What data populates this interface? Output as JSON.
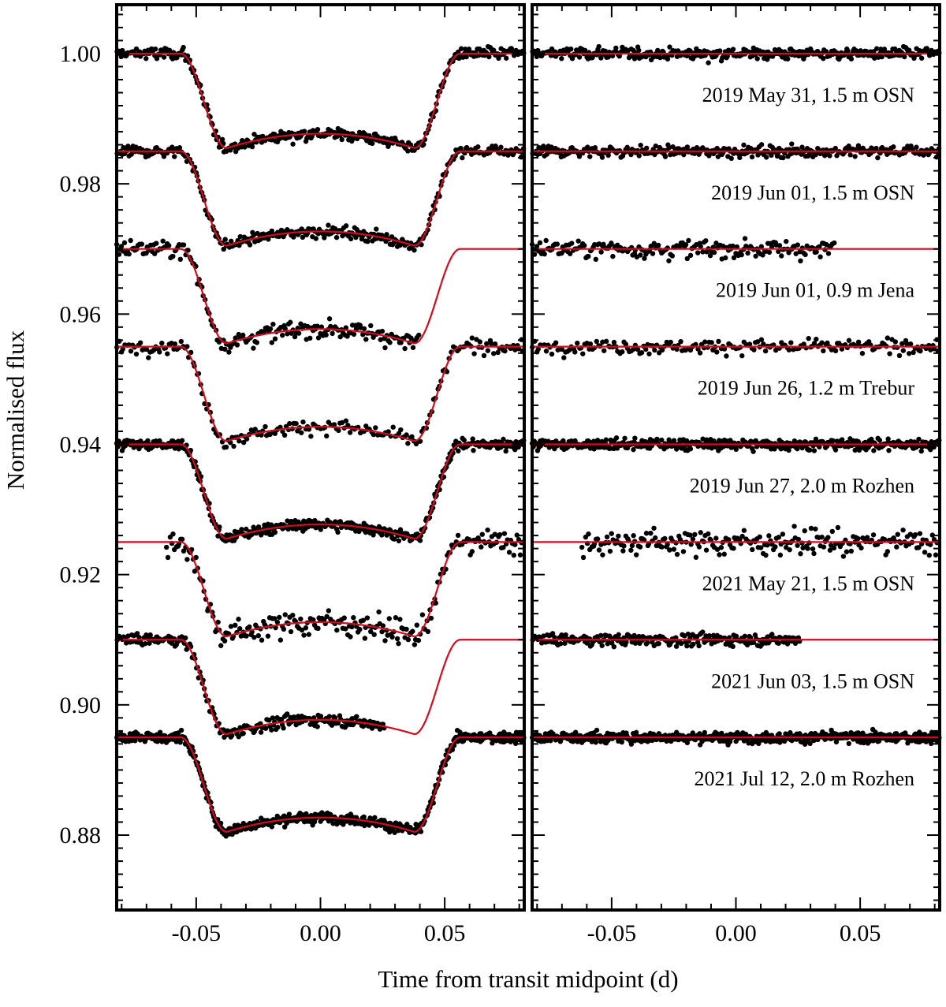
{
  "chart_data": {
    "type": "scatter",
    "xlabel": "Time from transit midpoint (d)",
    "ylabel": "Normalised flux",
    "xlim": [
      -0.082,
      0.082
    ],
    "ylim": [
      0.8685,
      1.0075
    ],
    "yticks_labeled": [
      "1.00",
      "0.98",
      "0.96",
      "0.94",
      "0.92",
      "0.90",
      "0.88"
    ],
    "xticks_labeled": [
      "-0.05",
      "0.00",
      "0.05"
    ],
    "grid": false,
    "colors": {
      "points": "#000000",
      "model": "#d40a1e"
    },
    "transit_model": {
      "t14": 0.1125,
      "t12": 0.0185,
      "depth": 0.0145,
      "limb_curvature": 0.0022
    },
    "panels": [
      {
        "name": "light-curves",
        "content": "transit data with model"
      },
      {
        "name": "residuals",
        "content": "residuals with zero line"
      }
    ],
    "series": [
      {
        "name": "2019 May 31, 1.5 m OSN",
        "offset": 1.0,
        "x_range": [
          -0.082,
          0.082
        ],
        "scatter": 0.00065,
        "n_points": 380
      },
      {
        "name": "2019 Jun 01, 1.5 m OSN",
        "offset": 0.985,
        "x_range": [
          -0.082,
          0.082
        ],
        "scatter": 0.0006,
        "n_points": 340
      },
      {
        "name": "2019 Jun 01, 0.9 m Jena",
        "offset": 0.97,
        "x_range": [
          -0.082,
          0.04
        ],
        "scatter": 0.001,
        "n_points": 200
      },
      {
        "name": "2019 Jun 26, 1.2 m Trebur",
        "offset": 0.955,
        "x_range": [
          -0.082,
          0.082
        ],
        "scatter": 0.00075,
        "n_points": 210
      },
      {
        "name": "2019 Jun 27, 2.0 m Rozhen",
        "offset": 0.94,
        "x_range": [
          -0.082,
          0.082
        ],
        "scatter": 0.0006,
        "n_points": 480
      },
      {
        "name": "2021 May 21, 1.5 m OSN",
        "offset": 0.925,
        "x_range": [
          -0.062,
          0.082
        ],
        "scatter": 0.0013,
        "n_points": 230
      },
      {
        "name": "2021 Jun 03, 1.5 m OSN",
        "offset": 0.91,
        "x_range": [
          -0.082,
          0.026
        ],
        "scatter": 0.00065,
        "n_points": 240
      },
      {
        "name": "2021 Jul 12, 2.0 m Rozhen",
        "offset": 0.895,
        "x_range": [
          -0.082,
          0.082
        ],
        "scatter": 0.00055,
        "n_points": 650
      }
    ]
  }
}
